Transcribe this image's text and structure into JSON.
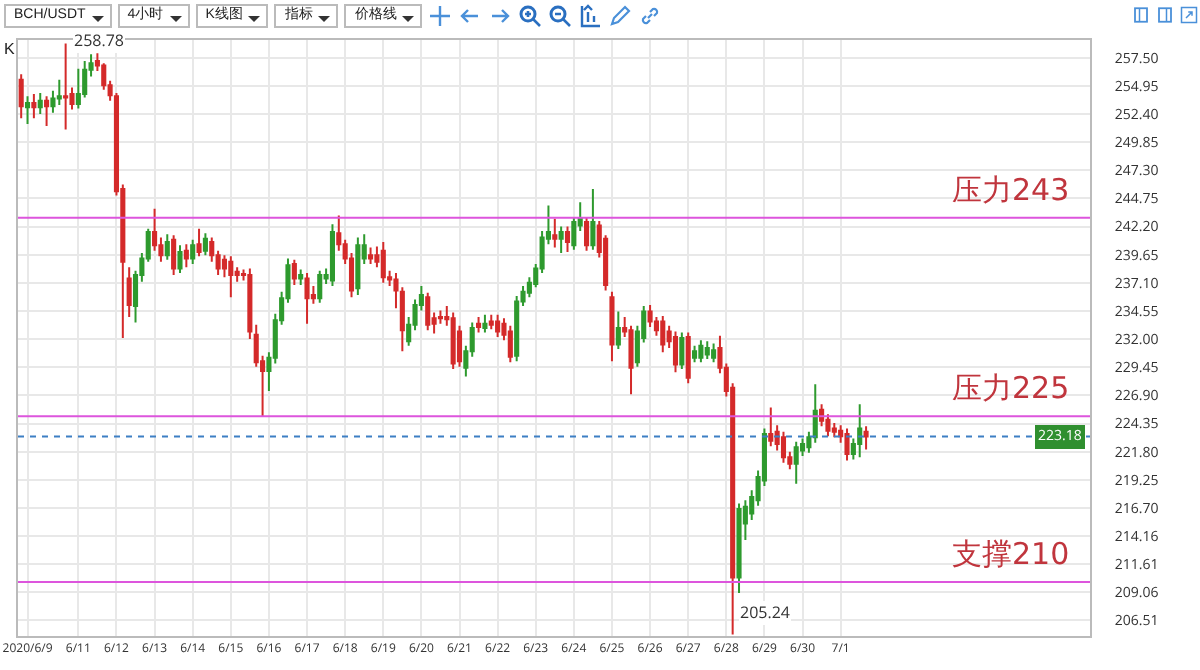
{
  "chart_data": {
    "type": "candlestick",
    "annotations": [
      "BCH/USDT",
      "4小时",
      "K线图",
      "指标",
      "价格线",
      "K",
      {
        "text": "258.78",
        "x": "2020-06-10T16:00",
        "y": 258.78
      },
      {
        "text": "205.24",
        "x": "2020-06-28T04:00",
        "y": 205.24
      }
    ],
    "x": [
      "2020-06-09T12:00",
      "2020-06-09T16:00",
      "2020-06-09T20:00",
      "2020-06-10T00:00",
      "2020-06-10T04:00",
      "2020-06-10T08:00",
      "2020-06-10T12:00",
      "2020-06-10T16:00",
      "2020-06-10T20:00",
      "2020-06-11T00:00",
      "2020-06-11T04:00",
      "2020-06-11T08:00",
      "2020-06-11T12:00",
      "2020-06-11T16:00",
      "2020-06-11T20:00",
      "2020-06-12T00:00",
      "2020-06-12T04:00",
      "2020-06-12T08:00",
      "2020-06-12T12:00",
      "2020-06-12T16:00",
      "2020-06-12T20:00",
      "2020-06-13T00:00",
      "2020-06-13T04:00",
      "2020-06-13T08:00",
      "2020-06-13T12:00",
      "2020-06-13T16:00",
      "2020-06-13T20:00",
      "2020-06-14T00:00",
      "2020-06-14T04:00",
      "2020-06-14T08:00",
      "2020-06-14T12:00",
      "2020-06-14T16:00",
      "2020-06-14T20:00",
      "2020-06-15T00:00",
      "2020-06-15T04:00",
      "2020-06-15T08:00",
      "2020-06-15T12:00",
      "2020-06-15T16:00",
      "2020-06-15T20:00",
      "2020-06-16T00:00",
      "2020-06-16T04:00",
      "2020-06-16T08:00",
      "2020-06-16T12:00",
      "2020-06-16T16:00",
      "2020-06-16T20:00",
      "2020-06-17T00:00",
      "2020-06-17T04:00",
      "2020-06-17T08:00",
      "2020-06-17T12:00",
      "2020-06-17T16:00",
      "2020-06-17T20:00",
      "2020-06-18T00:00",
      "2020-06-18T04:00",
      "2020-06-18T08:00",
      "2020-06-18T12:00",
      "2020-06-18T16:00",
      "2020-06-18T20:00",
      "2020-06-19T00:00",
      "2020-06-19T04:00",
      "2020-06-19T08:00",
      "2020-06-19T12:00",
      "2020-06-19T16:00",
      "2020-06-19T20:00",
      "2020-06-20T00:00",
      "2020-06-20T04:00",
      "2020-06-20T08:00",
      "2020-06-20T12:00",
      "2020-06-20T16:00",
      "2020-06-20T20:00",
      "2020-06-21T00:00",
      "2020-06-21T04:00",
      "2020-06-21T08:00",
      "2020-06-21T12:00",
      "2020-06-21T16:00",
      "2020-06-21T20:00",
      "2020-06-22T00:00",
      "2020-06-22T04:00",
      "2020-06-22T08:00",
      "2020-06-22T12:00",
      "2020-06-22T16:00",
      "2020-06-22T20:00",
      "2020-06-23T00:00",
      "2020-06-23T04:00",
      "2020-06-23T08:00",
      "2020-06-23T12:00",
      "2020-06-23T16:00",
      "2020-06-23T20:00",
      "2020-06-24T00:00",
      "2020-06-24T04:00",
      "2020-06-24T08:00",
      "2020-06-24T12:00",
      "2020-06-24T16:00",
      "2020-06-24T20:00",
      "2020-06-25T00:00",
      "2020-06-25T04:00",
      "2020-06-25T08:00",
      "2020-06-25T12:00",
      "2020-06-25T16:00",
      "2020-06-25T20:00",
      "2020-06-26T00:00",
      "2020-06-26T04:00",
      "2020-06-26T08:00",
      "2020-06-26T12:00",
      "2020-06-26T16:00",
      "2020-06-26T20:00",
      "2020-06-27T00:00",
      "2020-06-27T04:00",
      "2020-06-27T08:00",
      "2020-06-27T12:00",
      "2020-06-27T16:00",
      "2020-06-27T20:00",
      "2020-06-28T00:00",
      "2020-06-28T04:00",
      "2020-06-28T08:00",
      "2020-06-28T12:00",
      "2020-06-28T16:00",
      "2020-06-28T20:00",
      "2020-06-29T00:00",
      "2020-06-29T04:00",
      "2020-06-29T08:00",
      "2020-06-29T12:00",
      "2020-06-29T16:00",
      "2020-06-29T20:00",
      "2020-06-30T00:00",
      "2020-06-30T04:00",
      "2020-06-30T08:00",
      "2020-06-30T12:00",
      "2020-06-30T16:00",
      "2020-06-30T20:00",
      "2020-07-01T00:00",
      "2020-07-01T04:00",
      "2020-07-01T08:00",
      "2020-07-01T12:00",
      "2020-07-01T16:00"
    ],
    "ohlc": [
      [
        255.5,
        256.0,
        252.0,
        253.1
      ],
      [
        253.0,
        254.0,
        251.5,
        253.4
      ],
      [
        253.4,
        254.2,
        252.0,
        253.0
      ],
      [
        253.0,
        254.3,
        252.4,
        253.6
      ],
      [
        253.6,
        254.0,
        251.3,
        253.1
      ],
      [
        253.1,
        254.5,
        252.5,
        253.8
      ],
      [
        253.8,
        255.5,
        253.2,
        254.0
      ],
      [
        254.0,
        258.78,
        251.0,
        253.9
      ],
      [
        254.2,
        254.8,
        252.8,
        253.3
      ],
      [
        253.3,
        256.5,
        252.9,
        254.2
      ],
      [
        254.2,
        257.2,
        253.9,
        256.4
      ],
      [
        256.4,
        257.8,
        255.8,
        257.0
      ],
      [
        257.2,
        257.9,
        256.3,
        256.8
      ],
      [
        256.8,
        257.0,
        254.6,
        255.0
      ],
      [
        255.0,
        255.4,
        253.6,
        254.1
      ],
      [
        254.0,
        254.3,
        245.0,
        245.4
      ],
      [
        245.6,
        246.0,
        232.1,
        239.0
      ],
      [
        237.5,
        238.5,
        234.0,
        235.1
      ],
      [
        235.0,
        238.2,
        233.5,
        237.8
      ],
      [
        237.8,
        239.8,
        237.2,
        239.3
      ],
      [
        239.3,
        242.0,
        239.0,
        241.7
      ],
      [
        241.7,
        243.8,
        240.0,
        240.5
      ],
      [
        240.5,
        241.2,
        239.0,
        239.6
      ],
      [
        239.6,
        241.5,
        239.2,
        240.8
      ],
      [
        241.0,
        241.4,
        237.8,
        238.4
      ],
      [
        238.4,
        240.5,
        238.0,
        239.9
      ],
      [
        240.0,
        240.6,
        238.5,
        239.3
      ],
      [
        239.3,
        241.0,
        238.8,
        240.5
      ],
      [
        240.6,
        242.0,
        239.5,
        239.9
      ],
      [
        240.0,
        241.6,
        239.6,
        241.1
      ],
      [
        240.8,
        241.2,
        239.0,
        239.6
      ],
      [
        239.6,
        240.0,
        237.8,
        238.4
      ],
      [
        239.2,
        239.6,
        237.6,
        238.4
      ],
      [
        239.0,
        239.5,
        235.8,
        237.8
      ],
      [
        238.1,
        238.5,
        237.2,
        237.8
      ],
      [
        237.9,
        238.3,
        237.3,
        237.8
      ],
      [
        237.8,
        238.4,
        232.0,
        232.7
      ],
      [
        232.4,
        233.3,
        229.5,
        229.9
      ],
      [
        230.0,
        230.5,
        225.0,
        229.1
      ],
      [
        229.1,
        230.8,
        227.3,
        230.3
      ],
      [
        230.3,
        234.3,
        229.8,
        233.7
      ],
      [
        233.7,
        236.3,
        233.3,
        235.7
      ],
      [
        235.7,
        239.3,
        235.3,
        238.7
      ],
      [
        238.8,
        239.2,
        236.9,
        237.5
      ],
      [
        237.5,
        238.3,
        236.9,
        237.8
      ],
      [
        237.5,
        238.0,
        233.4,
        235.7
      ],
      [
        236.0,
        236.8,
        235.2,
        235.7
      ],
      [
        235.7,
        238.2,
        235.3,
        237.8
      ],
      [
        237.5,
        238.4,
        237.0,
        237.8
      ],
      [
        237.3,
        242.4,
        236.8,
        241.7
      ],
      [
        241.6,
        243.2,
        240.0,
        240.6
      ],
      [
        240.6,
        241.0,
        238.8,
        239.3
      ],
      [
        239.3,
        239.8,
        235.8,
        236.4
      ],
      [
        236.6,
        241.2,
        236.0,
        240.5
      ],
      [
        239.3,
        241.5,
        238.8,
        240.5
      ],
      [
        239.6,
        240.3,
        238.8,
        239.3
      ],
      [
        239.6,
        240.4,
        238.5,
        239.0
      ],
      [
        240.0,
        240.8,
        237.1,
        237.6
      ],
      [
        237.6,
        238.2,
        236.8,
        237.4
      ],
      [
        237.4,
        238.0,
        234.8,
        236.4
      ],
      [
        236.3,
        236.7,
        230.9,
        232.8
      ],
      [
        231.8,
        234.0,
        231.4,
        233.3
      ],
      [
        233.3,
        235.6,
        232.8,
        235.1
      ],
      [
        235.1,
        236.8,
        234.6,
        236.0
      ],
      [
        235.8,
        236.2,
        232.8,
        233.3
      ],
      [
        233.9,
        234.4,
        232.5,
        233.4
      ],
      [
        234.0,
        234.6,
        233.4,
        233.9
      ],
      [
        234.0,
        235.0,
        233.2,
        233.8
      ],
      [
        233.9,
        234.4,
        229.3,
        229.8
      ],
      [
        232.7,
        233.2,
        229.5,
        230.0
      ],
      [
        229.4,
        231.4,
        228.6,
        230.9
      ],
      [
        230.9,
        233.5,
        230.4,
        233.0
      ],
      [
        233.4,
        234.0,
        232.6,
        233.1
      ],
      [
        233.0,
        234.2,
        232.6,
        233.4
      ],
      [
        233.6,
        234.2,
        232.9,
        233.3
      ],
      [
        233.6,
        234.2,
        232.2,
        232.7
      ],
      [
        233.4,
        233.9,
        231.9,
        232.4
      ],
      [
        232.7,
        233.2,
        229.9,
        230.4
      ],
      [
        230.5,
        235.9,
        230.0,
        235.4
      ],
      [
        235.4,
        236.8,
        235.0,
        236.3
      ],
      [
        236.2,
        237.6,
        235.8,
        237.1
      ],
      [
        237.0,
        238.8,
        236.7,
        238.4
      ],
      [
        238.4,
        241.8,
        238.0,
        241.2
      ],
      [
        241.1,
        244.1,
        240.6,
        241.7
      ],
      [
        241.4,
        242.9,
        240.3,
        241.1
      ],
      [
        241.1,
        242.2,
        239.8,
        241.7
      ],
      [
        241.7,
        242.2,
        239.9,
        240.8
      ],
      [
        240.5,
        243.0,
        240.1,
        242.6
      ],
      [
        242.3,
        244.4,
        241.8,
        242.9
      ],
      [
        242.6,
        243.0,
        240.0,
        240.5
      ],
      [
        240.5,
        245.6,
        240.1,
        242.6
      ],
      [
        242.3,
        242.7,
        239.4,
        239.9
      ],
      [
        241.1,
        241.4,
        236.4,
        236.9
      ],
      [
        235.8,
        236.3,
        230.0,
        231.5
      ],
      [
        231.5,
        234.5,
        231.1,
        233.0
      ],
      [
        233.0,
        234.0,
        232.2,
        232.7
      ],
      [
        232.8,
        233.2,
        227.0,
        229.4
      ],
      [
        229.9,
        233.2,
        229.5,
        232.7
      ],
      [
        232.1,
        235.0,
        231.7,
        234.5
      ],
      [
        234.5,
        235.1,
        233.1,
        233.6
      ],
      [
        233.6,
        234.0,
        232.3,
        232.8
      ],
      [
        233.6,
        234.1,
        230.8,
        231.5
      ],
      [
        232.7,
        233.2,
        231.2,
        231.8
      ],
      [
        232.2,
        232.7,
        229.0,
        229.7
      ],
      [
        229.7,
        232.6,
        229.3,
        232.1
      ],
      [
        232.2,
        232.6,
        228.0,
        228.5
      ],
      [
        230.3,
        231.4,
        229.9,
        230.9
      ],
      [
        230.3,
        231.9,
        229.9,
        231.4
      ],
      [
        230.6,
        231.8,
        230.2,
        231.2
      ],
      [
        230.3,
        231.6,
        229.9,
        231.0
      ],
      [
        231.2,
        232.3,
        228.9,
        229.4
      ],
      [
        229.4,
        229.8,
        226.8,
        227.3
      ],
      [
        227.6,
        228.0,
        205.24,
        210.4
      ],
      [
        210.4,
        217.1,
        209.0,
        216.6
      ],
      [
        215.3,
        217.4,
        213.8,
        216.8
      ],
      [
        216.2,
        218.3,
        215.6,
        217.7
      ],
      [
        217.4,
        220.1,
        216.9,
        219.5
      ],
      [
        219.2,
        223.9,
        218.7,
        223.4
      ],
      [
        223.4,
        225.8,
        222.3,
        222.8
      ],
      [
        223.6,
        224.2,
        221.9,
        222.5
      ],
      [
        223.1,
        223.6,
        220.8,
        221.3
      ],
      [
        221.3,
        221.8,
        220.2,
        220.7
      ],
      [
        220.7,
        222.7,
        218.9,
        222.2
      ],
      [
        221.9,
        223.0,
        221.4,
        222.5
      ],
      [
        222.2,
        223.6,
        221.7,
        223.1
      ],
      [
        223.1,
        227.9,
        222.6,
        225.5
      ],
      [
        225.6,
        226.1,
        224.1,
        224.6
      ],
      [
        224.7,
        225.2,
        223.2,
        223.7
      ],
      [
        223.9,
        224.4,
        223.1,
        223.6
      ],
      [
        223.7,
        224.2,
        222.6,
        223.2
      ],
      [
        223.4,
        223.9,
        221.0,
        221.6
      ],
      [
        221.6,
        223.0,
        221.1,
        222.5
      ],
      [
        222.5,
        226.1,
        221.3,
        223.9
      ],
      [
        223.6,
        224.1,
        222.0,
        223.18
      ]
    ],
    "xlim": [
      "2020-06-09T10:00",
      "2020-07-07T13:00"
    ],
    "xticks": [
      {
        "value": "2020-06-09T16:00",
        "label": "2020/6/9"
      },
      {
        "value": "2020-06-11",
        "label": "6/11"
      },
      {
        "value": "2020-06-12",
        "label": "6/12"
      },
      {
        "value": "2020-06-13",
        "label": "6/13"
      },
      {
        "value": "2020-06-14",
        "label": "6/14"
      },
      {
        "value": "2020-06-15",
        "label": "6/15"
      },
      {
        "value": "2020-06-16",
        "label": "6/16"
      },
      {
        "value": "2020-06-17",
        "label": "6/17"
      },
      {
        "value": "2020-06-18",
        "label": "6/18"
      },
      {
        "value": "2020-06-19",
        "label": "6/19"
      },
      {
        "value": "2020-06-20",
        "label": "6/20"
      },
      {
        "value": "2020-06-21",
        "label": "6/21"
      },
      {
        "value": "2020-06-22",
        "label": "6/22"
      },
      {
        "value": "2020-06-23",
        "label": "6/23"
      },
      {
        "value": "2020-06-24",
        "label": "6/24"
      },
      {
        "value": "2020-06-25",
        "label": "6/25"
      },
      {
        "value": "2020-06-26",
        "label": "6/26"
      },
      {
        "value": "2020-06-27",
        "label": "6/27"
      },
      {
        "value": "2020-06-28",
        "label": "6/28"
      },
      {
        "value": "2020-06-29",
        "label": "6/29"
      },
      {
        "value": "2020-06-30",
        "label": "6/30"
      },
      {
        "value": "2020-07-01",
        "label": "7/1"
      }
    ],
    "ylim": [
      205.1,
      259.1
    ],
    "yticks": [
      {
        "value": 257.5,
        "label": "257.50"
      },
      254.95,
      {
        "value": 252.4,
        "label": "252.40"
      },
      249.85,
      {
        "value": 247.3,
        "label": "247.30"
      },
      244.75,
      {
        "value": 242.2,
        "label": "242.20"
      },
      239.65,
      {
        "value": 237.1,
        "label": "237.10"
      },
      234.55,
      {
        "value": 232,
        "label": "232.00"
      },
      229.45,
      {
        "value": 226.9,
        "label": "226.90"
      },
      224.35,
      {
        "value": 221.8,
        "label": "221.80"
      },
      219.25,
      {
        "value": 216.7,
        "label": "216.70"
      },
      214.16,
      211.61,
      209.06,
      206.51
    ],
    "grid": true,
    "ref_lines": [
      {
        "axis": "y",
        "value": 243,
        "label": "压力243",
        "color": "#dd55dd"
      },
      {
        "axis": "y",
        "value": 225,
        "label": "压力225",
        "color": "#dd55dd"
      },
      {
        "axis": "y",
        "value": 210,
        "label": "支撑210",
        "color": "#dd55dd"
      },
      {
        "axis": "y",
        "value": 223.18,
        "label": "223.18",
        "color": "#3d7fc4",
        "line_style": "dotted"
      }
    ]
  }
}
